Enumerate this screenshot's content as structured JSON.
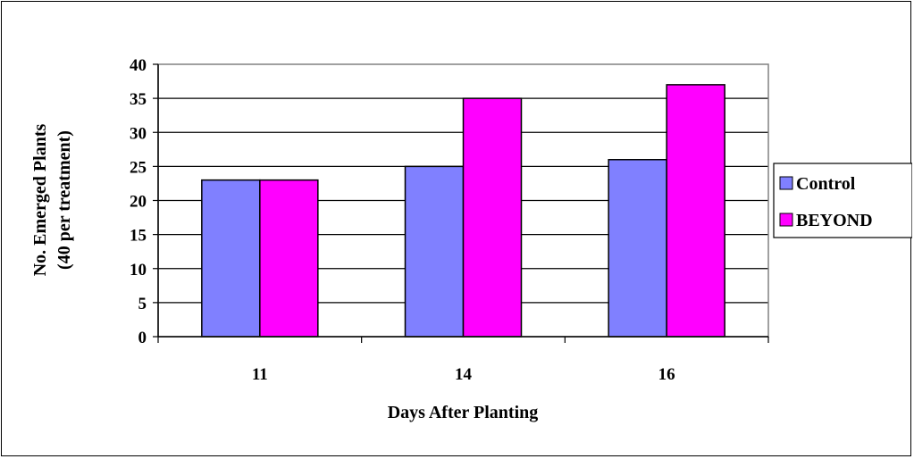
{
  "colors": {
    "control": "#8080ff",
    "beyond": "#ff00ff",
    "plot_border": "#808080",
    "gridline": "#000000"
  },
  "chart_data": {
    "type": "bar",
    "categories": [
      "11",
      "14",
      "16"
    ],
    "series": [
      {
        "name": "Control",
        "values": [
          23,
          25,
          26
        ]
      },
      {
        "name": "BEYOND",
        "values": [
          23,
          35,
          37
        ]
      }
    ],
    "xlabel": "Days After Planting",
    "ylabel": [
      "No.  Emerged Plants",
      "(40 per treatment)"
    ],
    "ylim": [
      0,
      40
    ],
    "yticks": [
      0,
      5,
      10,
      15,
      20,
      25,
      30,
      35,
      40
    ],
    "grid": true,
    "legend_position": "right"
  }
}
